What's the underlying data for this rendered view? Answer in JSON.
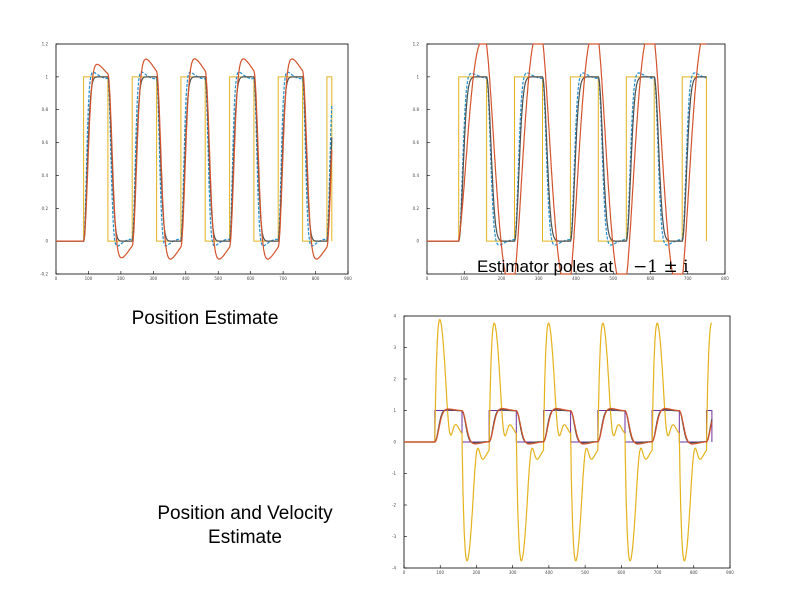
{
  "captions": {
    "position_estimate": "Position Estimate",
    "position_velocity_line1": "Position and Velocity",
    "position_velocity_line2": "Estimate",
    "estimator_poles_text": "Estimator poles at ",
    "estimator_poles_math": "−1 ± i"
  },
  "colors": {
    "square": "#e5b21b",
    "blue": "#1f8fd0",
    "red": "#d4532b",
    "dark": "#505050",
    "purple": "#7030a0",
    "yellow": "#e5b21b"
  },
  "chart_data": [
    {
      "id": "top-left",
      "type": "line",
      "xlim": [
        0,
        900
      ],
      "ylim": [
        -0.2,
        1.2
      ],
      "xticks": [
        0,
        100,
        200,
        300,
        400,
        500,
        600,
        700,
        800,
        900
      ],
      "yticks": [
        -0.2,
        0,
        0.2,
        0.4,
        0.6,
        0.8,
        1,
        1.2
      ],
      "square": {
        "x_end": 850,
        "start": 85,
        "period": 150,
        "high_frac": 0.5,
        "low": 0,
        "high": 1
      },
      "series": [
        {
          "color_key": "square",
          "kind": "square"
        },
        {
          "color_key": "blue",
          "kind": "response",
          "tau": 12,
          "overshoot": 0.06,
          "osc_period": 55
        },
        {
          "color_key": "dark",
          "kind": "response",
          "tau": 15,
          "overshoot": 0.0,
          "osc_period": 60
        },
        {
          "color_key": "red",
          "kind": "response",
          "tau": 18,
          "overshoot": 0.15,
          "osc_period": 85
        }
      ]
    },
    {
      "id": "top-right",
      "type": "line",
      "xlim": [
        0,
        800
      ],
      "ylim": [
        -0.2,
        1.2
      ],
      "xticks": [
        0,
        100,
        200,
        300,
        400,
        500,
        600,
        700,
        800
      ],
      "yticks": [
        0,
        0.2,
        0.4,
        0.6,
        0.8,
        1,
        1.2
      ],
      "square": {
        "x_end": 750,
        "start": 85,
        "period": 150,
        "high_frac": 0.5,
        "low": 0,
        "high": 1
      },
      "series": [
        {
          "color_key": "square",
          "kind": "square"
        },
        {
          "color_key": "blue",
          "kind": "response",
          "tau": 14,
          "overshoot": 0.05,
          "osc_period": 60
        },
        {
          "color_key": "dark",
          "kind": "response",
          "tau": 16,
          "overshoot": 0.0,
          "osc_period": 60
        },
        {
          "color_key": "red",
          "kind": "slow",
          "tau": 45,
          "overshoot": 0.45,
          "osc_period": 140
        }
      ]
    },
    {
      "id": "bottom-right",
      "type": "line",
      "xlim": [
        0,
        900
      ],
      "ylim": [
        -4,
        4
      ],
      "xticks": [
        0,
        100,
        200,
        300,
        400,
        500,
        600,
        700,
        800,
        900
      ],
      "yticks": [
        -4,
        -3,
        -2,
        -1,
        0,
        1,
        2,
        3,
        4
      ],
      "square": {
        "x_end": 850,
        "start": 85,
        "period": 150,
        "high_frac": 0.5,
        "low": 0,
        "high": 1
      },
      "series": [
        {
          "color_key": "purple",
          "kind": "square"
        },
        {
          "color_key": "yellow",
          "kind": "velocity",
          "amp": 3.9
        },
        {
          "color_key": "dark",
          "kind": "response",
          "tau": 14,
          "overshoot": 0.06,
          "osc_period": 60
        },
        {
          "color_key": "red",
          "kind": "response",
          "tau": 16,
          "overshoot": 0.1,
          "osc_period": 70
        }
      ]
    }
  ]
}
